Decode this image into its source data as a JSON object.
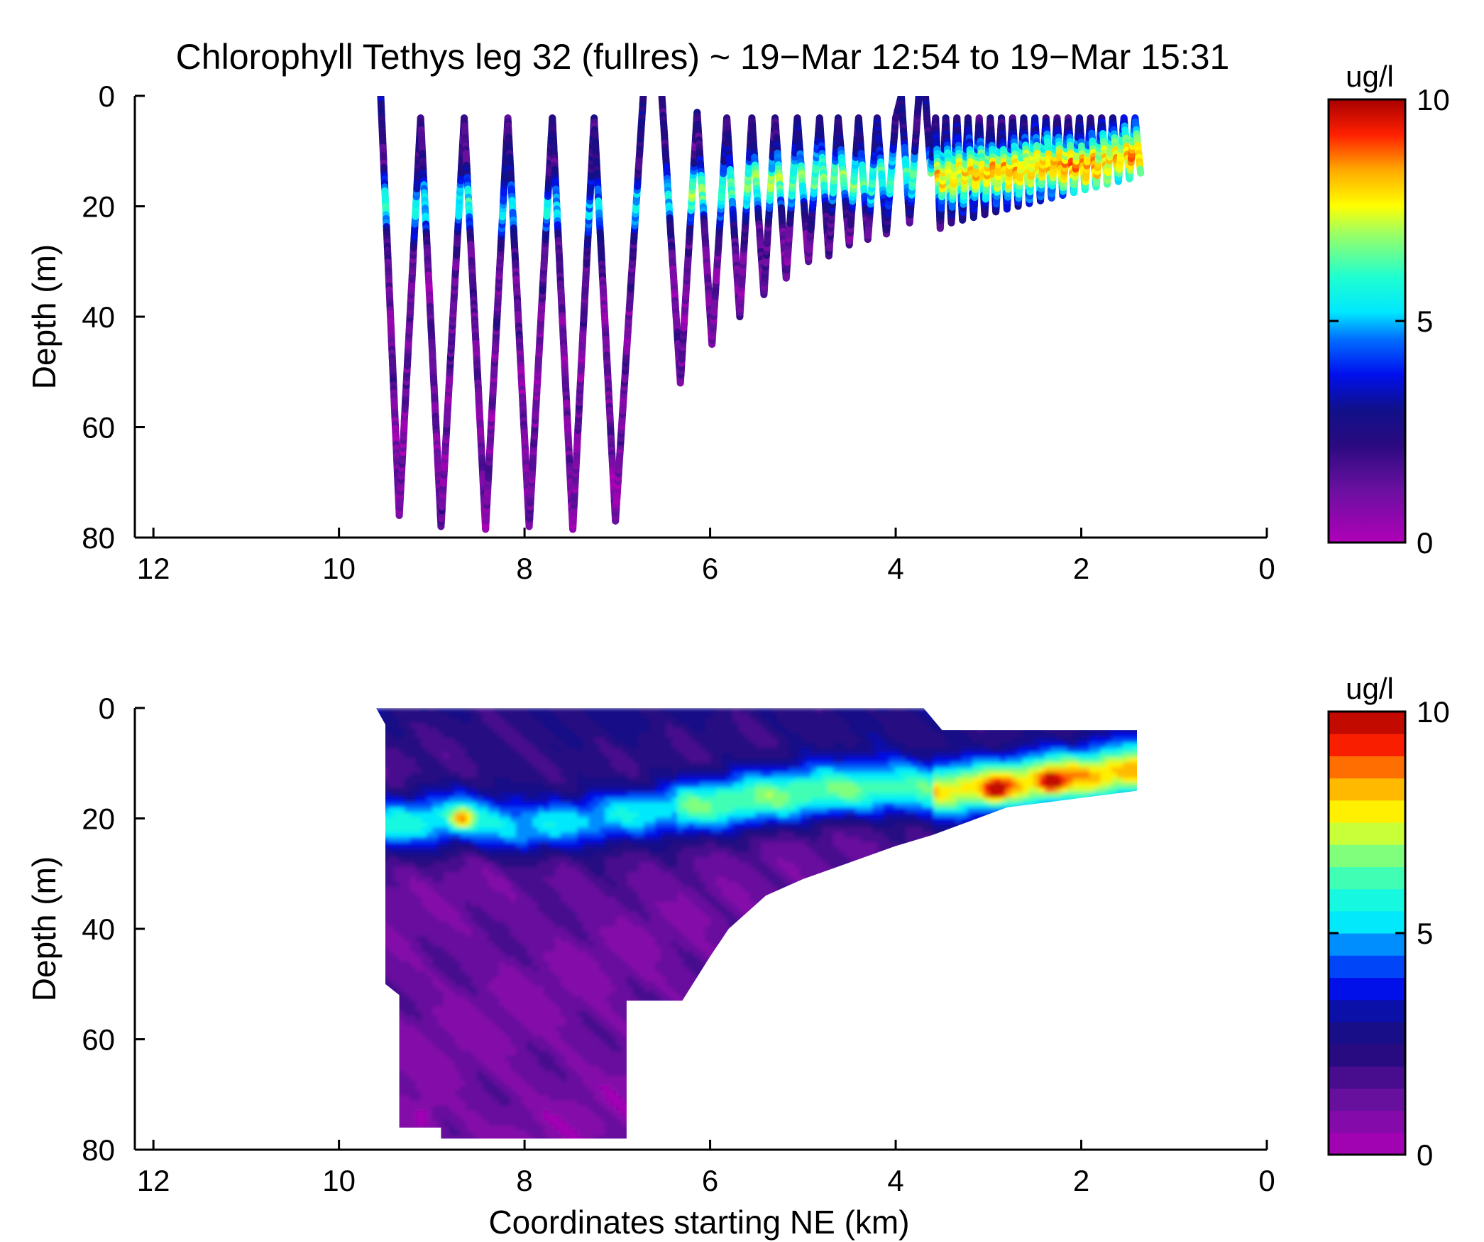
{
  "chart_data": [
    {
      "type": "scatter",
      "title": "Chlorophyll Tethys leg 32 (fullres) ~ 19−Mar 12:54 to 19−Mar 15:31",
      "xlabel": "",
      "ylabel": "Depth (m)",
      "xlim": [
        12.2,
        0
      ],
      "ylim": [
        0,
        80
      ],
      "x_reversed": true,
      "y_reversed": true,
      "xticks": [
        "12",
        "10",
        "8",
        "6",
        "4",
        "2",
        "0"
      ],
      "yticks": [
        "0",
        "20",
        "40",
        "60",
        "80"
      ],
      "colorbar": {
        "unit": "ug/l",
        "range": [
          0,
          10
        ],
        "ticks": [
          "0",
          "5",
          "10"
        ],
        "palette": "jet-violet"
      },
      "yo_path_km_depth": [
        [
          9.55,
          0
        ],
        [
          9.35,
          76
        ],
        [
          9.12,
          4
        ],
        [
          8.9,
          78
        ],
        [
          8.65,
          4
        ],
        [
          8.42,
          78.5
        ],
        [
          8.18,
          4
        ],
        [
          7.95,
          78
        ],
        [
          7.7,
          4
        ],
        [
          7.48,
          78.5
        ],
        [
          7.25,
          4
        ],
        [
          7.02,
          77
        ],
        [
          6.72,
          0
        ],
        [
          6.52,
          0
        ],
        [
          6.32,
          52
        ],
        [
          6.14,
          3
        ],
        [
          5.98,
          45
        ],
        [
          5.82,
          4
        ],
        [
          5.68,
          40
        ],
        [
          5.55,
          4
        ],
        [
          5.42,
          36
        ],
        [
          5.3,
          4
        ],
        [
          5.18,
          33
        ],
        [
          5.06,
          4
        ],
        [
          4.94,
          30
        ],
        [
          4.82,
          4
        ],
        [
          4.72,
          29
        ],
        [
          4.62,
          4
        ],
        [
          4.5,
          27
        ],
        [
          4.4,
          4
        ],
        [
          4.3,
          26
        ],
        [
          4.2,
          4
        ],
        [
          4.1,
          25
        ],
        [
          4.0,
          4
        ],
        [
          3.94,
          0
        ],
        [
          3.85,
          23
        ],
        [
          3.75,
          0
        ],
        [
          3.68,
          0
        ],
        [
          3.62,
          14
        ],
        [
          3.57,
          4
        ],
        [
          3.52,
          24
        ],
        [
          3.46,
          4
        ],
        [
          3.4,
          23
        ],
        [
          3.34,
          4
        ],
        [
          3.28,
          22.5
        ],
        [
          3.22,
          4
        ],
        [
          3.16,
          22
        ],
        [
          3.1,
          4
        ],
        [
          3.04,
          21.5
        ],
        [
          2.98,
          4
        ],
        [
          2.92,
          21
        ],
        [
          2.86,
          4
        ],
        [
          2.8,
          20.5
        ],
        [
          2.74,
          4
        ],
        [
          2.68,
          20
        ],
        [
          2.62,
          4
        ],
        [
          2.56,
          19.5
        ],
        [
          2.5,
          4
        ],
        [
          2.44,
          19
        ],
        [
          2.38,
          4
        ],
        [
          2.32,
          18.5
        ],
        [
          2.26,
          4
        ],
        [
          2.2,
          18
        ],
        [
          2.14,
          4
        ],
        [
          2.08,
          17.5
        ],
        [
          2.02,
          4
        ],
        [
          1.96,
          17
        ],
        [
          1.9,
          4
        ],
        [
          1.84,
          16.5
        ],
        [
          1.78,
          4
        ],
        [
          1.72,
          16
        ],
        [
          1.66,
          4
        ],
        [
          1.6,
          15.5
        ],
        [
          1.54,
          4
        ],
        [
          1.48,
          15
        ],
        [
          1.42,
          4
        ],
        [
          1.36,
          14
        ]
      ],
      "chlorophyll_max_layer_km_depth": [
        [
          9.5,
          20
        ],
        [
          8.8,
          19.5
        ],
        [
          8.0,
          21
        ],
        [
          7.0,
          20
        ],
        [
          6.0,
          17
        ],
        [
          5.0,
          15
        ],
        [
          4.0,
          15
        ],
        [
          3.0,
          14
        ],
        [
          2.5,
          13
        ],
        [
          2.0,
          13
        ],
        [
          1.4,
          11
        ]
      ]
    },
    {
      "type": "heatmap",
      "title": "",
      "xlabel": "Coordinates starting NE (km)",
      "ylabel": "Depth (m)",
      "xlim": [
        12.2,
        0
      ],
      "ylim": [
        0,
        80
      ],
      "x_reversed": true,
      "y_reversed": true,
      "xticks": [
        "12",
        "10",
        "8",
        "6",
        "4",
        "2",
        "0"
      ],
      "yticks": [
        "0",
        "20",
        "40",
        "60",
        "80"
      ],
      "colorbar": {
        "unit": "ug/l",
        "range": [
          0,
          10
        ],
        "ticks": [
          "0",
          "5",
          "10"
        ],
        "levels": 20,
        "palette": "jet-violet"
      },
      "data_boundary_km_depth": [
        [
          9.6,
          0
        ],
        [
          3.7,
          0
        ],
        [
          3.5,
          4
        ],
        [
          1.4,
          4
        ],
        [
          1.4,
          15
        ],
        [
          2.8,
          18
        ],
        [
          3.6,
          23
        ],
        [
          4.0,
          25
        ],
        [
          4.5,
          28
        ],
        [
          5.0,
          31
        ],
        [
          5.4,
          34
        ],
        [
          5.8,
          40
        ],
        [
          6.0,
          45
        ],
        [
          6.3,
          53
        ],
        [
          6.9,
          53
        ],
        [
          6.9,
          78
        ],
        [
          7.5,
          78
        ],
        [
          8.0,
          78
        ],
        [
          8.9,
          78
        ],
        [
          8.9,
          76
        ],
        [
          9.35,
          76
        ],
        [
          9.35,
          52
        ],
        [
          9.5,
          50
        ],
        [
          9.5,
          3
        ]
      ],
      "chlorophyll_max_layer_km_depth": [
        [
          9.5,
          20.5
        ],
        [
          8.7,
          19.5
        ],
        [
          8.0,
          21.5
        ],
        [
          7.4,
          20
        ],
        [
          6.6,
          18
        ],
        [
          5.8,
          16.5
        ],
        [
          5.0,
          15
        ],
        [
          4.2,
          14
        ],
        [
          3.5,
          14.5
        ],
        [
          2.9,
          13.5
        ],
        [
          2.4,
          12.5
        ],
        [
          2.0,
          12
        ],
        [
          1.4,
          11
        ]
      ],
      "peak_values_ug_l": [
        {
          "km": 2.95,
          "depth": 14.5,
          "value": 8.8
        },
        {
          "km": 2.35,
          "depth": 13,
          "value": 8.4
        },
        {
          "km": 8.7,
          "depth": 19.5,
          "value": 6.8
        },
        {
          "km": 9.1,
          "depth": 73,
          "value": 0.2
        }
      ]
    }
  ]
}
